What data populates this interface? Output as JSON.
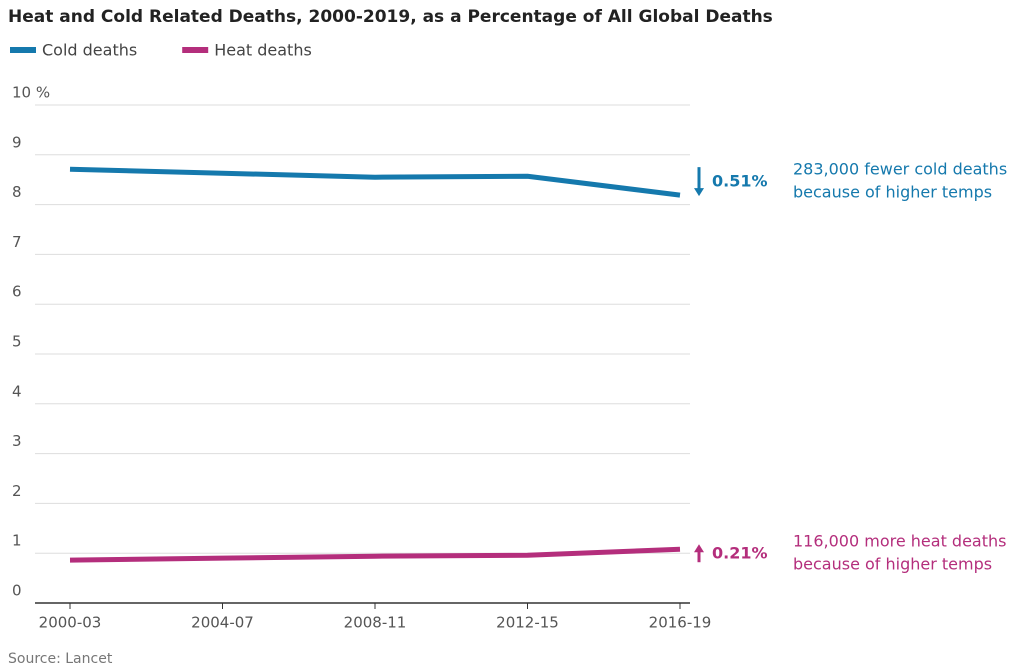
{
  "chart_data": {
    "type": "line",
    "title": "Heat and Cold Related Deaths, 2000-2019, as a Percentage of All Global Deaths",
    "categories": [
      "2000-03",
      "2004-07",
      "2008-11",
      "2012-15",
      "2016-19"
    ],
    "series": [
      {
        "name": "Cold deaths",
        "color": "#1579ad",
        "values": [
          8.71,
          8.63,
          8.55,
          8.57,
          8.19
        ]
      },
      {
        "name": "Heat deaths",
        "color": "#b42e7c",
        "values": [
          0.86,
          0.9,
          0.94,
          0.96,
          1.08
        ]
      }
    ],
    "ylim": [
      0,
      10
    ],
    "yticks": [
      0,
      1,
      2,
      3,
      4,
      5,
      6,
      7,
      8,
      9,
      {
        "value": 10,
        "label": "10 %"
      }
    ],
    "grid": true,
    "legend": "top-left",
    "annotations": [
      {
        "change": "0.51%",
        "direction": "down",
        "lines": [
          "283,000 fewer cold deaths",
          "because of higher temps"
        ]
      },
      {
        "change": "0.21%",
        "direction": "up",
        "lines": [
          "116,000 more heat deaths",
          "because of higher temps"
        ]
      }
    ],
    "source": "Source: Lancet"
  }
}
